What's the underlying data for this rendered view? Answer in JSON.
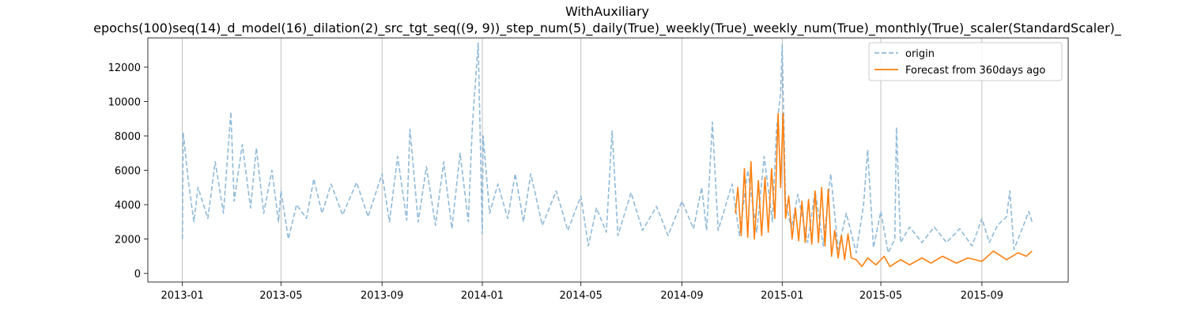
{
  "chart_data": {
    "type": "line",
    "title": "WithAuxiliary",
    "subtitle": "epochs(100)seq(14)_d_model(16)_dilation(2)_src_tgt_seq((9, 9))_step_num(5)_daily(True)_weekly(True)_weekly_num(True)_monthly(True)_scaler(StandardScaler)_",
    "xlabel": "",
    "ylabel": "",
    "xlim": [
      "2012-11-20",
      "2015-12-15"
    ],
    "ylim": [
      -500,
      13700
    ],
    "x_ticks": [
      "2013-01",
      "2013-05",
      "2013-09",
      "2014-01",
      "2014-05",
      "2014-09",
      "2015-01",
      "2015-05",
      "2015-09"
    ],
    "y_ticks": [
      0,
      2000,
      4000,
      6000,
      8000,
      10000,
      12000
    ],
    "grid": "vertical",
    "legend": "top-right",
    "series": [
      {
        "name": "origin",
        "color": "#8fbad9",
        "style": "dashed",
        "points": [
          [
            "2013-01-01",
            2000
          ],
          [
            "2013-01-02",
            8200
          ],
          [
            "2013-01-08",
            5500
          ],
          [
            "2013-01-15",
            3000
          ],
          [
            "2013-01-20",
            5000
          ],
          [
            "2013-02-01",
            3200
          ],
          [
            "2013-02-10",
            6500
          ],
          [
            "2013-02-20",
            3500
          ],
          [
            "2013-03-01",
            9400
          ],
          [
            "2013-03-05",
            4200
          ],
          [
            "2013-03-15",
            7500
          ],
          [
            "2013-03-25",
            3800
          ],
          [
            "2013-04-01",
            7300
          ],
          [
            "2013-04-10",
            3500
          ],
          [
            "2013-04-20",
            6000
          ],
          [
            "2013-04-28",
            3000
          ],
          [
            "2013-05-01",
            4800
          ],
          [
            "2013-05-10",
            2000
          ],
          [
            "2013-05-20",
            4000
          ],
          [
            "2013-06-01",
            3200
          ],
          [
            "2013-06-10",
            5500
          ],
          [
            "2013-06-20",
            3500
          ],
          [
            "2013-07-01",
            5200
          ],
          [
            "2013-07-15",
            3400
          ],
          [
            "2013-08-01",
            5300
          ],
          [
            "2013-08-15",
            3300
          ],
          [
            "2013-09-01",
            5800
          ],
          [
            "2013-09-10",
            3000
          ],
          [
            "2013-09-20",
            6800
          ],
          [
            "2013-10-01",
            3100
          ],
          [
            "2013-10-05",
            8400
          ],
          [
            "2013-10-15",
            3000
          ],
          [
            "2013-10-25",
            6200
          ],
          [
            "2013-11-05",
            2800
          ],
          [
            "2013-11-15",
            6500
          ],
          [
            "2013-11-25",
            2600
          ],
          [
            "2013-12-05",
            7000
          ],
          [
            "2013-12-15",
            3000
          ],
          [
            "2013-12-20",
            8700
          ],
          [
            "2013-12-27",
            13400
          ],
          [
            "2014-01-01",
            2300
          ],
          [
            "2014-01-02",
            8000
          ],
          [
            "2014-01-10",
            3500
          ],
          [
            "2014-01-20",
            5200
          ],
          [
            "2014-02-01",
            3200
          ],
          [
            "2014-02-10",
            5800
          ],
          [
            "2014-02-20",
            3000
          ],
          [
            "2014-03-01",
            5800
          ],
          [
            "2014-03-15",
            2800
          ],
          [
            "2014-04-01",
            4800
          ],
          [
            "2014-04-15",
            2500
          ],
          [
            "2014-05-01",
            4500
          ],
          [
            "2014-05-10",
            1600
          ],
          [
            "2014-05-20",
            3800
          ],
          [
            "2014-06-01",
            2400
          ],
          [
            "2014-06-08",
            8300
          ],
          [
            "2014-06-15",
            2200
          ],
          [
            "2014-07-01",
            4700
          ],
          [
            "2014-07-15",
            2500
          ],
          [
            "2014-08-01",
            3900
          ],
          [
            "2014-08-15",
            2200
          ],
          [
            "2014-09-01",
            4200
          ],
          [
            "2014-09-15",
            2600
          ],
          [
            "2014-09-25",
            5000
          ],
          [
            "2014-10-01",
            2500
          ],
          [
            "2014-10-08",
            8800
          ],
          [
            "2014-10-15",
            2500
          ],
          [
            "2014-11-01",
            5200
          ],
          [
            "2014-11-10",
            2200
          ],
          [
            "2014-11-20",
            6000
          ],
          [
            "2014-12-01",
            2400
          ],
          [
            "2014-12-10",
            6800
          ],
          [
            "2014-12-20",
            3000
          ],
          [
            "2014-12-25",
            8400
          ],
          [
            "2014-12-30",
            10500
          ],
          [
            "2015-01-01",
            13300
          ],
          [
            "2015-01-05",
            4200
          ],
          [
            "2015-01-12",
            2600
          ],
          [
            "2015-01-20",
            4600
          ],
          [
            "2015-02-01",
            1800
          ],
          [
            "2015-02-10",
            4800
          ],
          [
            "2015-02-20",
            1600
          ],
          [
            "2015-03-01",
            5800
          ],
          [
            "2015-03-10",
            1400
          ],
          [
            "2015-03-20",
            3500
          ],
          [
            "2015-04-01",
            1200
          ],
          [
            "2015-04-10",
            4000
          ],
          [
            "2015-04-15",
            7200
          ],
          [
            "2015-04-22",
            1500
          ],
          [
            "2015-05-01",
            3600
          ],
          [
            "2015-05-10",
            1200
          ],
          [
            "2015-05-18",
            2000
          ],
          [
            "2015-05-20",
            8500
          ],
          [
            "2015-05-25",
            1800
          ],
          [
            "2015-06-05",
            2700
          ],
          [
            "2015-06-20",
            1800
          ],
          [
            "2015-07-05",
            2700
          ],
          [
            "2015-07-20",
            1800
          ],
          [
            "2015-08-05",
            2600
          ],
          [
            "2015-08-20",
            1600
          ],
          [
            "2015-09-01",
            3200
          ],
          [
            "2015-09-10",
            1800
          ],
          [
            "2015-09-20",
            2800
          ],
          [
            "2015-10-01",
            3300
          ],
          [
            "2015-10-05",
            4800
          ],
          [
            "2015-10-10",
            1400
          ],
          [
            "2015-10-20",
            2600
          ],
          [
            "2015-10-28",
            3600
          ],
          [
            "2015-11-01",
            3000
          ]
        ]
      },
      {
        "name": "Forecast from 360days ago",
        "color": "#ff7f0e",
        "style": "solid",
        "points": [
          [
            "2014-11-05",
            3500
          ],
          [
            "2014-11-08",
            5000
          ],
          [
            "2014-11-12",
            2200
          ],
          [
            "2014-11-16",
            6100
          ],
          [
            "2014-11-20",
            2100
          ],
          [
            "2014-11-24",
            6500
          ],
          [
            "2014-11-28",
            2000
          ],
          [
            "2014-12-03",
            5400
          ],
          [
            "2014-12-07",
            2200
          ],
          [
            "2014-12-11",
            5600
          ],
          [
            "2014-12-15",
            2400
          ],
          [
            "2014-12-19",
            6100
          ],
          [
            "2014-12-23",
            3200
          ],
          [
            "2014-12-27",
            9300
          ],
          [
            "2014-12-30",
            5000
          ],
          [
            "2015-01-02",
            9300
          ],
          [
            "2015-01-05",
            3200
          ],
          [
            "2015-01-09",
            4500
          ],
          [
            "2015-01-13",
            2000
          ],
          [
            "2015-01-17",
            3800
          ],
          [
            "2015-01-21",
            1900
          ],
          [
            "2015-01-25",
            4200
          ],
          [
            "2015-01-29",
            1800
          ],
          [
            "2015-02-02",
            4300
          ],
          [
            "2015-02-06",
            1700
          ],
          [
            "2015-02-10",
            4800
          ],
          [
            "2015-02-14",
            1800
          ],
          [
            "2015-02-18",
            5000
          ],
          [
            "2015-02-22",
            1600
          ],
          [
            "2015-02-26",
            4900
          ],
          [
            "2015-03-02",
            1000
          ],
          [
            "2015-03-06",
            2500
          ],
          [
            "2015-03-10",
            900
          ],
          [
            "2015-03-14",
            2200
          ],
          [
            "2015-03-18",
            800
          ],
          [
            "2015-03-22",
            2300
          ],
          [
            "2015-03-26",
            900
          ],
          [
            "2015-04-01",
            800
          ],
          [
            "2015-04-08",
            400
          ],
          [
            "2015-04-15",
            900
          ],
          [
            "2015-04-25",
            500
          ],
          [
            "2015-05-05",
            1000
          ],
          [
            "2015-05-12",
            400
          ],
          [
            "2015-05-25",
            800
          ],
          [
            "2015-06-05",
            500
          ],
          [
            "2015-06-20",
            900
          ],
          [
            "2015-07-01",
            600
          ],
          [
            "2015-07-15",
            1000
          ],
          [
            "2015-08-01",
            600
          ],
          [
            "2015-08-15",
            900
          ],
          [
            "2015-09-01",
            700
          ],
          [
            "2015-09-15",
            1300
          ],
          [
            "2015-10-01",
            800
          ],
          [
            "2015-10-15",
            1200
          ],
          [
            "2015-10-25",
            1000
          ],
          [
            "2015-11-01",
            1300
          ]
        ]
      }
    ]
  }
}
